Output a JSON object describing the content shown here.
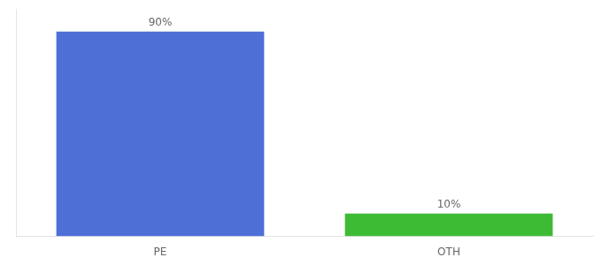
{
  "chart_data": {
    "type": "bar",
    "categories": [
      "PE",
      "OTH"
    ],
    "values": [
      90,
      10
    ],
    "value_labels": [
      "90%",
      "10%"
    ],
    "colors": [
      "#4d6fd6",
      "#3dbb35"
    ],
    "ylim": [
      0,
      100
    ],
    "data_labels": true,
    "tick_labels": "x",
    "grid": false
  }
}
